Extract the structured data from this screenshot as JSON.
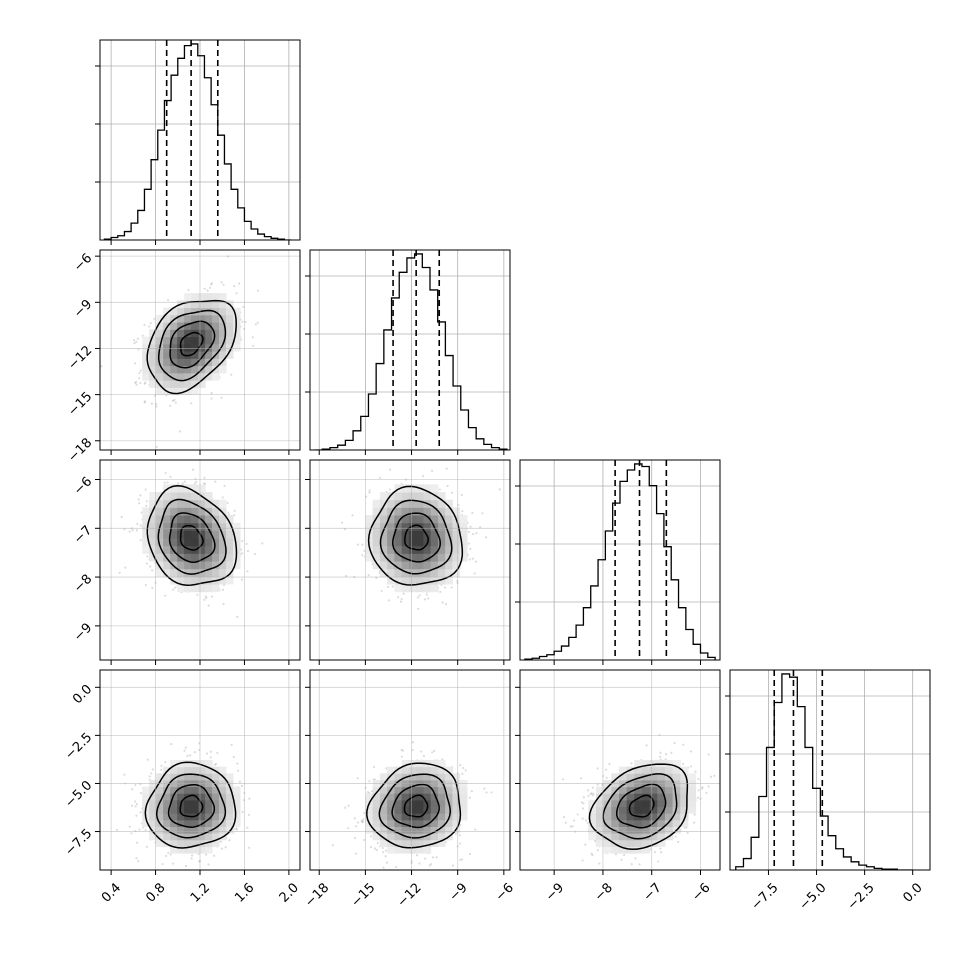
{
  "chart_data": {
    "type": "corner",
    "title": "",
    "parameters": [
      {
        "name": "",
        "range": [
          0.3,
          2.1
        ],
        "ticks": [
          0.4,
          0.8,
          1.2,
          1.6,
          2.0
        ],
        "tick_labels": [
          "0.4",
          "0.8",
          "1.2",
          "1.6",
          "2.0"
        ],
        "median": 1.12,
        "sigma": 0.2,
        "quantiles": [
          0.9,
          1.12,
          1.36
        ]
      },
      {
        "name": "",
        "range": [
          -18.6,
          -5.6
        ],
        "ticks": [
          -18,
          -15,
          -12,
          -9,
          -6
        ],
        "tick_labels": [
          "−18",
          "−15",
          "−12",
          "−9",
          "−6"
        ],
        "median": -11.7,
        "sigma": 1.5,
        "quantiles": [
          -13.2,
          -11.7,
          -10.2
        ]
      },
      {
        "name": "",
        "range": [
          -9.7,
          -5.6
        ],
        "ticks": [
          -9,
          -8,
          -7,
          -6
        ],
        "tick_labels": [
          "−9",
          "−8",
          "−7",
          "−6"
        ],
        "median": -7.2,
        "sigma": 0.5,
        "quantiles": [
          -7.75,
          -7.25,
          -6.7
        ]
      },
      {
        "name": "",
        "range": [
          -9.5,
          0.9
        ],
        "ticks": [
          -7.5,
          -5.0,
          -2.5,
          0.0
        ],
        "tick_labels": [
          "−7.5",
          "−5.0",
          "−2.5",
          "0.0"
        ],
        "median": -6.2,
        "sigma": 1.1,
        "quantiles": [
          -7.2,
          -6.2,
          -4.7
        ]
      }
    ],
    "y_axis_ticks": {
      "row1": {
        "ticks": [
          -6,
          -9,
          -12,
          -15,
          -18
        ],
        "tick_labels": [
          "−6",
          "−9",
          "−12",
          "−15",
          "−18"
        ]
      },
      "row2": {
        "ticks": [
          -6,
          -7,
          -8,
          -9
        ],
        "tick_labels": [
          "−6",
          "−7",
          "−8",
          "−9"
        ]
      },
      "row3": {
        "ticks": [
          0.0,
          -2.5,
          -5.0,
          -7.5
        ],
        "tick_labels": [
          "0.0",
          "−2.5",
          "−5.0",
          "−7.5"
        ]
      }
    },
    "histograms": [
      {
        "param": 0,
        "bins": [
          0.34,
          0.4,
          0.46,
          0.52,
          0.58,
          0.64,
          0.7,
          0.76,
          0.82,
          0.88,
          0.94,
          1.0,
          1.06,
          1.12,
          1.18,
          1.24,
          1.3,
          1.36,
          1.42,
          1.48,
          1.54,
          1.6,
          1.66,
          1.72,
          1.78,
          1.84,
          1.9,
          1.96,
          2.02
        ],
        "counts": [
          1,
          3,
          5,
          10,
          20,
          35,
          60,
          95,
          130,
          165,
          195,
          215,
          230,
          232,
          218,
          192,
          160,
          124,
          90,
          60,
          38,
          22,
          13,
          7,
          4,
          2,
          1,
          0
        ]
      },
      {
        "param": 1,
        "bins": [
          -18.3,
          -17.8,
          -17.3,
          -16.8,
          -16.3,
          -15.8,
          -15.3,
          -14.8,
          -14.3,
          -13.8,
          -13.3,
          -12.8,
          -12.3,
          -11.8,
          -11.3,
          -10.8,
          -10.3,
          -9.8,
          -9.3,
          -8.8,
          -8.3,
          -7.8,
          -7.3,
          -6.8,
          -6.3,
          -5.8
        ],
        "counts": [
          0,
          1,
          3,
          6,
          12,
          24,
          42,
          70,
          108,
          150,
          190,
          222,
          240,
          245,
          228,
          200,
          160,
          118,
          80,
          50,
          28,
          14,
          7,
          3,
          1
        ]
      },
      {
        "param": 2,
        "bins": [
          -9.6,
          -9.45,
          -9.3,
          -9.15,
          -9.0,
          -8.85,
          -8.7,
          -8.55,
          -8.4,
          -8.25,
          -8.1,
          -7.95,
          -7.8,
          -7.65,
          -7.5,
          -7.35,
          -7.2,
          -7.05,
          -6.9,
          -6.75,
          -6.6,
          -6.45,
          -6.3,
          -6.15,
          -6.0,
          -5.85,
          -5.7
        ],
        "counts": [
          1,
          2,
          4,
          6,
          10,
          16,
          26,
          40,
          60,
          85,
          115,
          148,
          180,
          205,
          218,
          225,
          222,
          200,
          168,
          130,
          92,
          60,
          35,
          18,
          8,
          3
        ]
      },
      {
        "param": 3,
        "bins": [
          -9.2,
          -8.8,
          -8.4,
          -8.0,
          -7.6,
          -7.2,
          -6.8,
          -6.4,
          -6.0,
          -5.6,
          -5.2,
          -4.8,
          -4.4,
          -4.0,
          -3.6,
          -3.2,
          -2.8,
          -2.4,
          -2.0,
          -1.6,
          -1.2,
          -0.8,
          -0.4,
          0.0
        ],
        "counts": [
          4,
          14,
          40,
          90,
          150,
          205,
          240,
          236,
          200,
          150,
          100,
          66,
          42,
          26,
          16,
          10,
          6,
          4,
          2,
          1,
          1,
          0,
          0
        ]
      }
    ],
    "pair_correlations": {
      "1,0": 0.35,
      "2,0": -0.2,
      "2,1": -0.05,
      "3,0": 0.05,
      "3,1": 0.1,
      "3,2": 0.25
    },
    "contour_levels_sigma": [
      0.5,
      1.0,
      1.5,
      2.0
    ],
    "grid": true,
    "legend": "none"
  }
}
